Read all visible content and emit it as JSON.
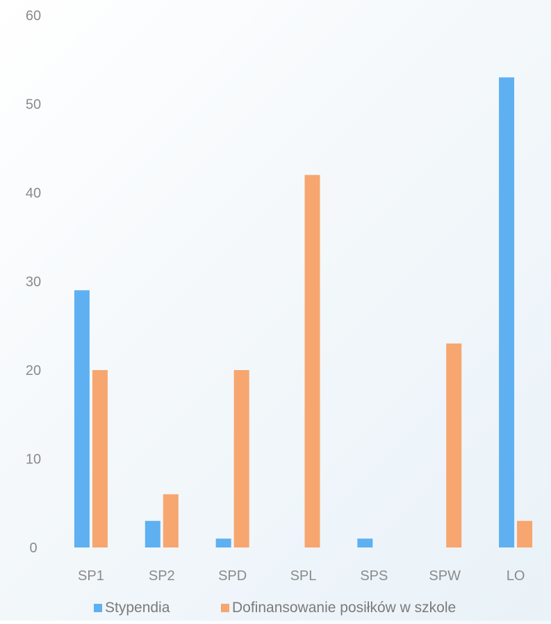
{
  "chart_data": {
    "type": "bar",
    "categories": [
      "SP1",
      "SP2",
      "SPD",
      "SPL",
      "SPS",
      "SPW",
      "LO"
    ],
    "series": [
      {
        "name": "Stypendia",
        "color": "#5fb0f0",
        "values": [
          29,
          3,
          1,
          0,
          1,
          0,
          53
        ]
      },
      {
        "name": "Dofinansowanie posiłków w szkole",
        "color": "#f6a66e",
        "values": [
          20,
          6,
          20,
          42,
          0,
          23,
          3
        ]
      }
    ],
    "y_ticks": [
      "0",
      "10",
      "20",
      "30",
      "40",
      "50",
      "60"
    ],
    "ylim": [
      0,
      60
    ],
    "grid": false,
    "legend_position": "bottom",
    "title": "",
    "xlabel": "",
    "ylabel": ""
  }
}
